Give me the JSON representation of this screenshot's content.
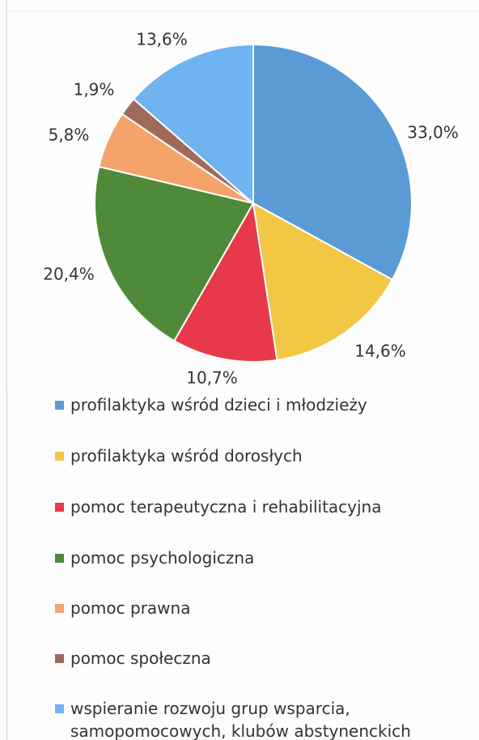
{
  "chart_data": {
    "type": "pie",
    "categories": [
      "profilaktyka wśród dzieci i młodzieży",
      "profilaktyka wśród dorosłych",
      "pomoc terapeutyczna i rehabilitacyjna",
      "pomoc psychologiczna",
      "pomoc prawna",
      "pomoc społeczna",
      "wspieranie rozwoju grup wsparcia, samopomocowych, klubów abstynenckich"
    ],
    "values": [
      33.0,
      14.6,
      10.7,
      20.4,
      5.8,
      1.9,
      13.6
    ],
    "value_labels": [
      "33,0%",
      "14,6%",
      "10,7%",
      "20,4%",
      "5,8%",
      "1,9%",
      "13,6%"
    ],
    "colors": [
      "#5b9bd5",
      "#f2c744",
      "#e8394a",
      "#4e8a3a",
      "#f4a46a",
      "#9e6b5a",
      "#6fb3f0"
    ],
    "legend": "bottom"
  }
}
